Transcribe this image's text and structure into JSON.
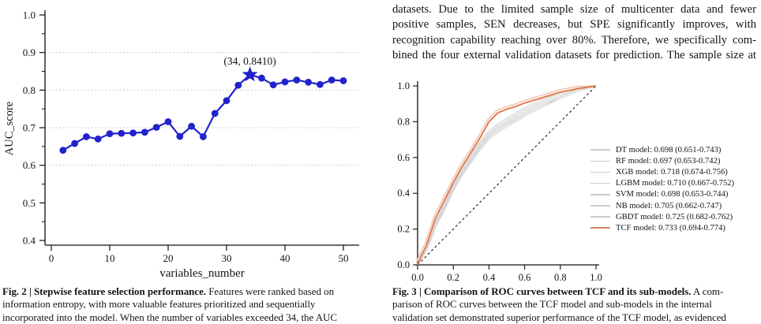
{
  "paragraph": {
    "line1": "datasets. Due to the limited sample size of multicenter data and fewer",
    "line2": "positive samples, SEN decreases, but SPE significantly improves, with",
    "line3": "recognition capability reaching over 80%. Therefore, we specifically com-",
    "line4": "bined the four external validation datasets for prediction. The sample size at"
  },
  "figure2": {
    "caption_bold": "Fig. 2 | Stepwise feature selection performance.",
    "caption_line1_rest": " Features were ranked based on",
    "caption_line2": "information entropy, with more valuable features prioritized and sequentially",
    "caption_line3": "incorporated into the model. When the number of variables exceeded 34, the AUC"
  },
  "figure3": {
    "caption_bold": "Fig. 3 | Comparison of ROC curves between TCF and its sub-models.",
    "caption_line1_rest": " A com-",
    "caption_line2": "parison of ROC curves between the TCF model and sub-models in the internal",
    "caption_line3": "validation set demonstrated superior performance of the TCF model, as evidenced"
  },
  "colors": {
    "line_blue": "#2222cc",
    "tcf_orange": "#e0784e",
    "tcf_halo": "#f3c6ae",
    "sub_model_gray": "#d9d9d9",
    "grid": "#bdbdbd",
    "axis": "#111111",
    "diagonal": "#1a1a1a",
    "legend_swatch_gray": "#cccccc",
    "legend_swatch_tcf": "#cc8a60"
  },
  "chart_data": [
    {
      "type": "line",
      "title": "",
      "xlabel": "variables_number",
      "ylabel": "AUC_score",
      "xlim": [
        0,
        52
      ],
      "ylim": [
        0.4,
        1.0
      ],
      "xticks": [
        0,
        10,
        20,
        30,
        40,
        50
      ],
      "yticks": [
        0.4,
        0.5,
        0.6,
        0.7,
        0.8,
        0.9,
        1.0
      ],
      "y_minor_ticks": [
        0.45,
        0.55,
        0.65,
        0.75,
        0.85,
        0.95
      ],
      "grid_y": [
        0.6,
        0.7,
        0.8,
        0.9
      ],
      "grid_on": true,
      "x": [
        2,
        4,
        6,
        8,
        10,
        12,
        14,
        16,
        18,
        20,
        22,
        24,
        26,
        28,
        30,
        32,
        34,
        36,
        38,
        40,
        42,
        44,
        46,
        48,
        50
      ],
      "y": [
        0.64,
        0.658,
        0.676,
        0.67,
        0.684,
        0.685,
        0.686,
        0.688,
        0.701,
        0.716,
        0.677,
        0.704,
        0.676,
        0.738,
        0.772,
        0.813,
        0.841,
        0.832,
        0.814,
        0.822,
        0.827,
        0.821,
        0.815,
        0.827,
        0.825
      ],
      "highlight": {
        "x": 34,
        "y": 0.841,
        "marker": "star",
        "annotation": "(34, 0.8410)"
      }
    },
    {
      "type": "line",
      "subtype": "roc",
      "title": "",
      "xlabel": "",
      "ylabel": "",
      "xlim": [
        0.0,
        1.0
      ],
      "ylim": [
        0.0,
        1.0
      ],
      "xticks": [
        0.0,
        0.2,
        0.4,
        0.6,
        0.8,
        1.0
      ],
      "yticks": [
        0.0,
        0.2,
        0.4,
        0.6,
        0.8,
        1.0
      ],
      "diagonal_reference": true,
      "legend_position": "right",
      "x": [
        0,
        0.02,
        0.05,
        0.08,
        0.1,
        0.15,
        0.2,
        0.25,
        0.3,
        0.35,
        0.4,
        0.45,
        0.5,
        0.55,
        0.6,
        0.7,
        0.8,
        0.9,
        1.0
      ],
      "series": [
        {
          "name": "DT model",
          "auc": 0.698,
          "ci": "0.651-0.743",
          "legend": "DT model: 0.698 (0.651-0.743)",
          "y": [
            0,
            0.03,
            0.08,
            0.15,
            0.21,
            0.3,
            0.41,
            0.5,
            0.57,
            0.64,
            0.7,
            0.74,
            0.77,
            0.8,
            0.83,
            0.88,
            0.93,
            0.97,
            1.0
          ]
        },
        {
          "name": "RF model",
          "auc": 0.697,
          "ci": "0.653-0.742",
          "legend": "RF model: 0.697 (0.653-0.742)",
          "y": [
            0,
            0.03,
            0.09,
            0.16,
            0.22,
            0.32,
            0.43,
            0.51,
            0.59,
            0.66,
            0.72,
            0.76,
            0.79,
            0.81,
            0.84,
            0.89,
            0.94,
            0.98,
            1.0
          ]
        },
        {
          "name": "XGB model",
          "auc": 0.718,
          "ci": "0.674-0.756",
          "legend": "XGB model: 0.718 (0.674-0.756)",
          "y": [
            0,
            0.04,
            0.1,
            0.18,
            0.24,
            0.34,
            0.45,
            0.53,
            0.61,
            0.68,
            0.74,
            0.78,
            0.81,
            0.84,
            0.87,
            0.92,
            0.96,
            0.99,
            1.0
          ]
        },
        {
          "name": "LGBM model",
          "auc": 0.71,
          "ci": "0.667-0.752",
          "legend": "LGBM model: 0.710 (0.667-0.752)",
          "y": [
            0,
            0.04,
            0.09,
            0.17,
            0.23,
            0.33,
            0.44,
            0.52,
            0.6,
            0.67,
            0.73,
            0.77,
            0.8,
            0.83,
            0.86,
            0.91,
            0.95,
            0.98,
            1.0
          ]
        },
        {
          "name": "SVM model",
          "auc": 0.698,
          "ci": "0.653-0.744",
          "legend": "SVM model: 0.698 (0.653-0.744)",
          "y": [
            0,
            0.03,
            0.08,
            0.16,
            0.21,
            0.31,
            0.42,
            0.5,
            0.58,
            0.65,
            0.71,
            0.75,
            0.78,
            0.81,
            0.84,
            0.89,
            0.93,
            0.97,
            1.0
          ]
        },
        {
          "name": "NB model",
          "auc": 0.705,
          "ci": "0.662-0.747",
          "legend": "NB model: 0.705 (0.662-0.747)",
          "y": [
            0,
            0.03,
            0.09,
            0.17,
            0.22,
            0.32,
            0.43,
            0.51,
            0.59,
            0.66,
            0.72,
            0.76,
            0.79,
            0.82,
            0.85,
            0.9,
            0.94,
            0.98,
            1.0
          ]
        },
        {
          "name": "GBDT model",
          "auc": 0.725,
          "ci": "0.682-0.762",
          "legend": "GBDT model: 0.725 (0.682-0.762)",
          "y": [
            0,
            0.04,
            0.1,
            0.18,
            0.24,
            0.34,
            0.45,
            0.54,
            0.62,
            0.69,
            0.75,
            0.79,
            0.82,
            0.85,
            0.88,
            0.93,
            0.96,
            0.99,
            1.0
          ]
        },
        {
          "name": "TCF model",
          "auc": 0.733,
          "ci": "0.694-0.774",
          "legend": "TCF model: 0.733 (0.694-0.774)",
          "highlight": true,
          "y": [
            0,
            0.05,
            0.11,
            0.2,
            0.26,
            0.36,
            0.46,
            0.55,
            0.63,
            0.71,
            0.8,
            0.85,
            0.87,
            0.885,
            0.905,
            0.935,
            0.965,
            0.985,
            1.0
          ]
        }
      ]
    }
  ]
}
